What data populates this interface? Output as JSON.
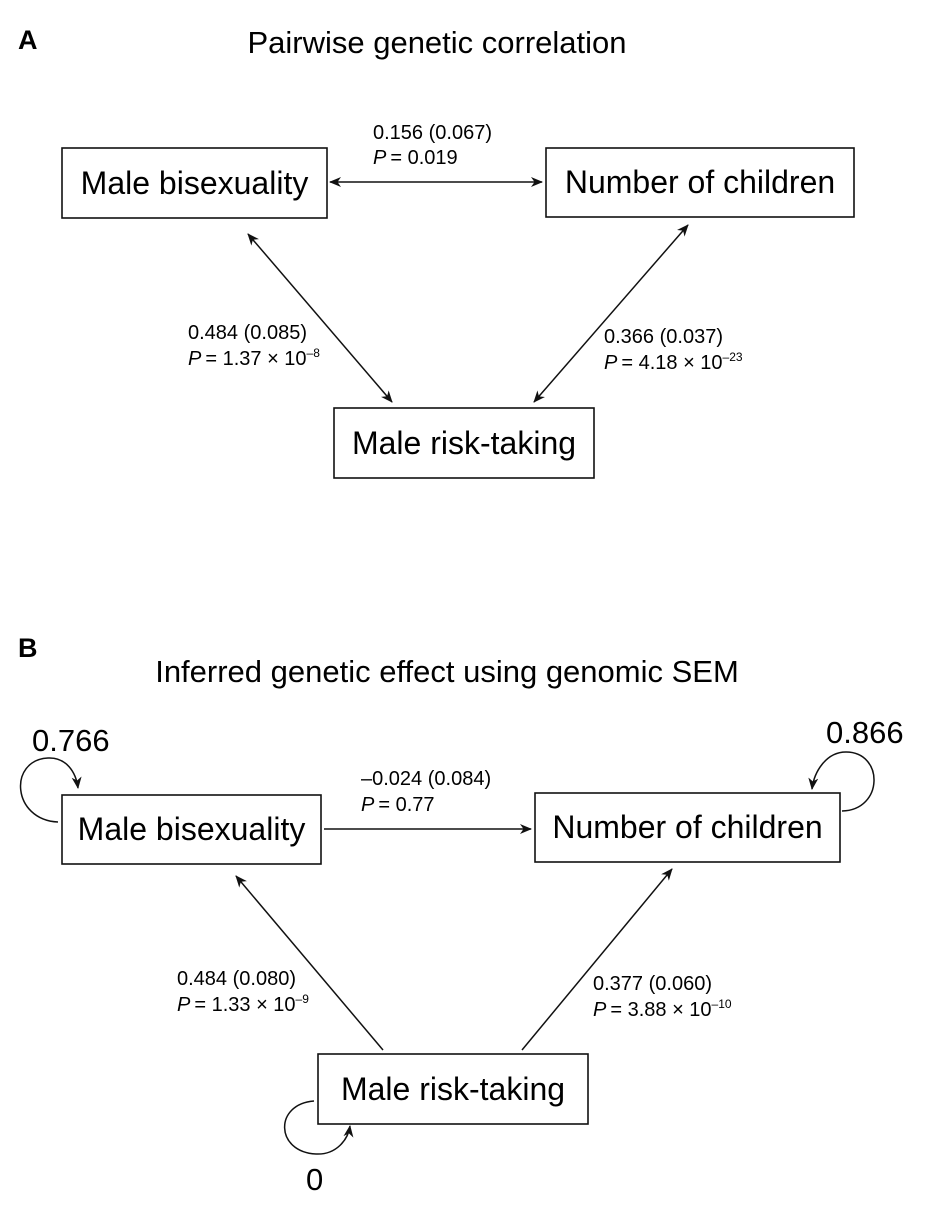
{
  "panel_a": {
    "label": "A",
    "title": "Pairwise genetic correlation",
    "nodes": {
      "bisexuality": "Male bisexuality",
      "children": "Number of children",
      "risk": "Male risk-taking"
    },
    "edges": {
      "bis_children": {
        "estimate": "0.156 (0.067)",
        "p_prefix": "P",
        "p_value": "= 0.019"
      },
      "bis_risk": {
        "estimate": "0.484 (0.085)",
        "p_prefix": "P",
        "p_value": "= 1.37 × 10",
        "p_exp": "–8"
      },
      "children_risk": {
        "estimate": "0.366 (0.037)",
        "p_prefix": "P",
        "p_value": "= 4.18 × 10",
        "p_exp": "–23"
      }
    }
  },
  "panel_b": {
    "label": "B",
    "title": "Inferred genetic effect using genomic SEM",
    "nodes": {
      "bisexuality": "Male bisexuality",
      "children": "Number of children",
      "risk": "Male risk-taking"
    },
    "variances": {
      "bisexuality": "0.766",
      "children": "0.866",
      "risk": "0"
    },
    "edges": {
      "bis_children": {
        "estimate": "–0.024 (0.084)",
        "p_prefix": "P",
        "p_value": "= 0.77"
      },
      "risk_bis": {
        "estimate": "0.484 (0.080)",
        "p_prefix": "P",
        "p_value": "= 1.33 × 10",
        "p_exp": "–9"
      },
      "risk_children": {
        "estimate": "0.377 (0.060)",
        "p_prefix": "P",
        "p_value": "= 3.88 × 10",
        "p_exp": "–10"
      }
    }
  }
}
